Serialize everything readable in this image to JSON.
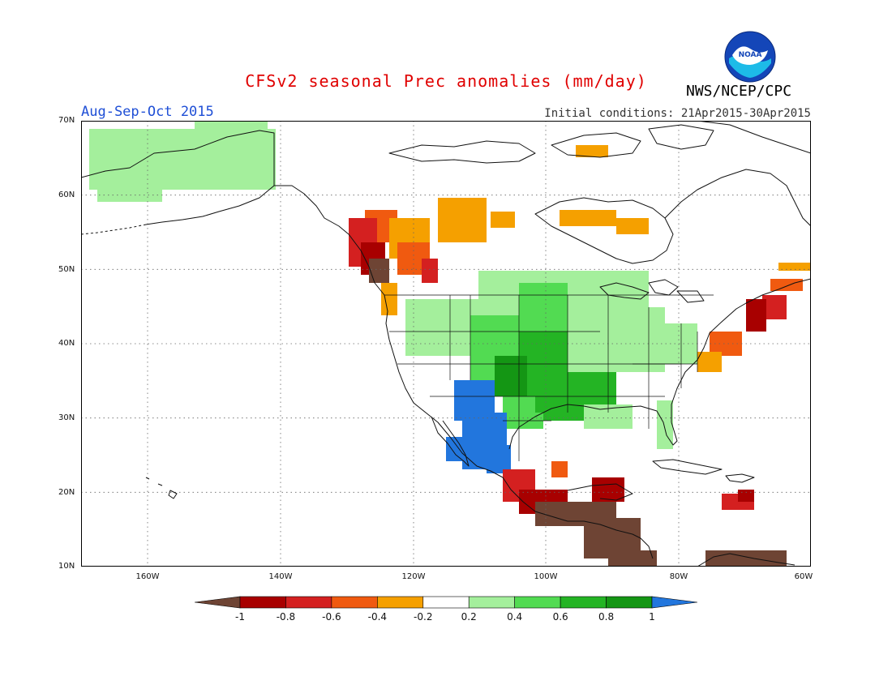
{
  "header": {
    "title": "CFSv2 seasonal Prec anomalies (mm/day)",
    "season": "Aug-Sep-Oct 2015",
    "initial_conditions": "Initial conditions: 21Apr2015-30Apr2015",
    "agency": "NWS/NCEP/CPC",
    "logo_text": "NOAA"
  },
  "map": {
    "region": "North America",
    "lon_range": [
      -170,
      -60
    ],
    "lat_range": [
      10,
      70
    ],
    "lat_labels": [
      "70N",
      "60N",
      "50N",
      "40N",
      "30N",
      "20N",
      "10N"
    ],
    "lon_labels": [
      "160W",
      "140W",
      "120W",
      "100W",
      "80W",
      "60W"
    ]
  },
  "colorbar": {
    "labels": [
      "-1",
      "-0.8",
      "-0.6",
      "-0.4",
      "-0.2",
      "0.2",
      "0.4",
      "0.6",
      "0.8",
      "1"
    ],
    "colors": [
      "#6e4434",
      "#a80000",
      "#d42020",
      "#f05a10",
      "#f5a000",
      "#ffffff",
      "#a4ef9c",
      "#52db52",
      "#24b424",
      "#149614",
      "#2276dd"
    ]
  }
}
